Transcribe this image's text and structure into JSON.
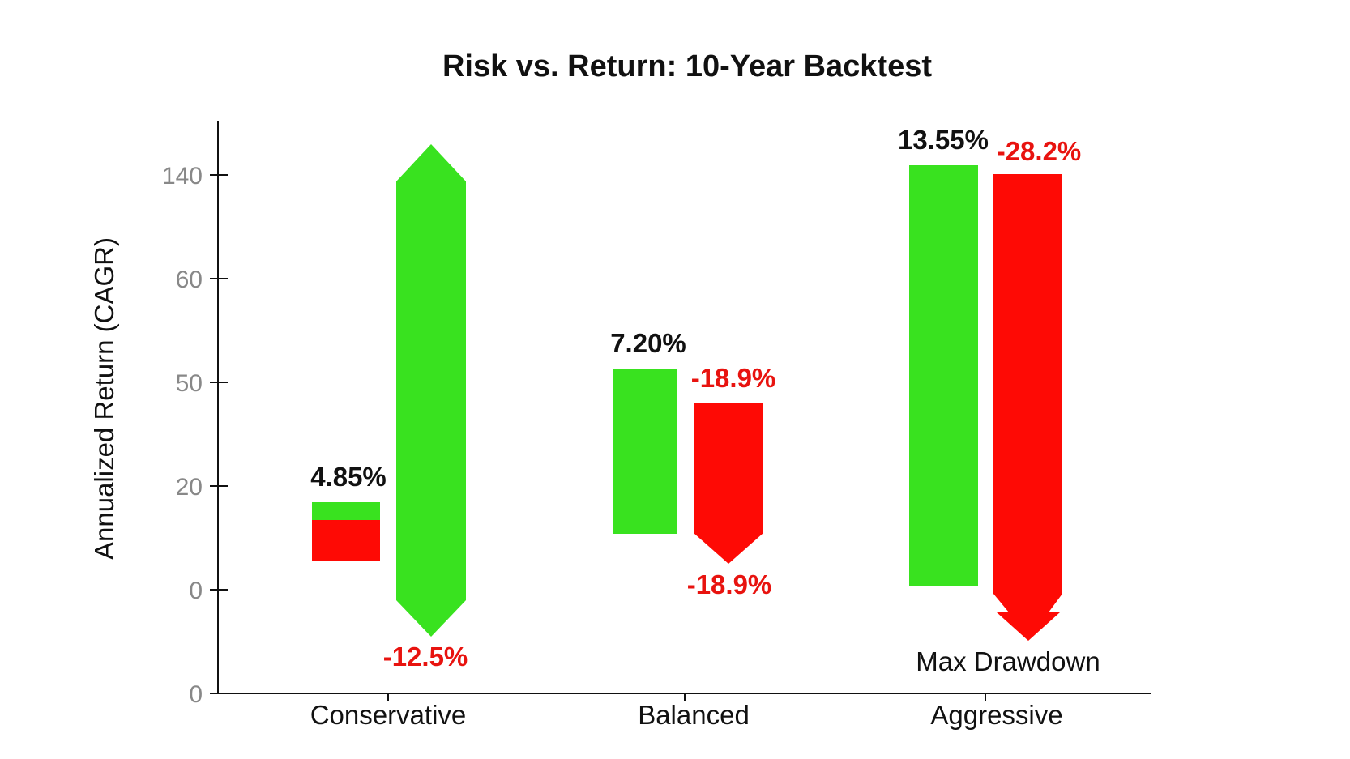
{
  "chart_data": {
    "type": "bar",
    "title": "Risk vs. Return: 10-Year Backtest",
    "ylabel": "Annualized Return (CAGR)",
    "xlabel": "",
    "yticks": [
      "140",
      "60",
      "50",
      "20",
      "0",
      "0"
    ],
    "categories": [
      "Conservative",
      "Balanced",
      "Aggressive"
    ],
    "series": [
      {
        "name": "Annualized Return (CAGR)",
        "color": "#39e21f",
        "values": [
          4.85,
          7.2,
          13.55
        ],
        "labels": [
          "4.85%",
          "7.20%",
          "13.55%"
        ]
      },
      {
        "name": "Max Drawdown",
        "color": "#fe0a05",
        "values": [
          -12.5,
          -18.9,
          -28.2
        ],
        "labels": [
          "-12.5%",
          "-18.9%",
          "-28.2%"
        ]
      }
    ],
    "extra_labels": [
      "-18.9%"
    ],
    "annotation": "Max Drawdown",
    "grid": false,
    "legend": "none"
  }
}
